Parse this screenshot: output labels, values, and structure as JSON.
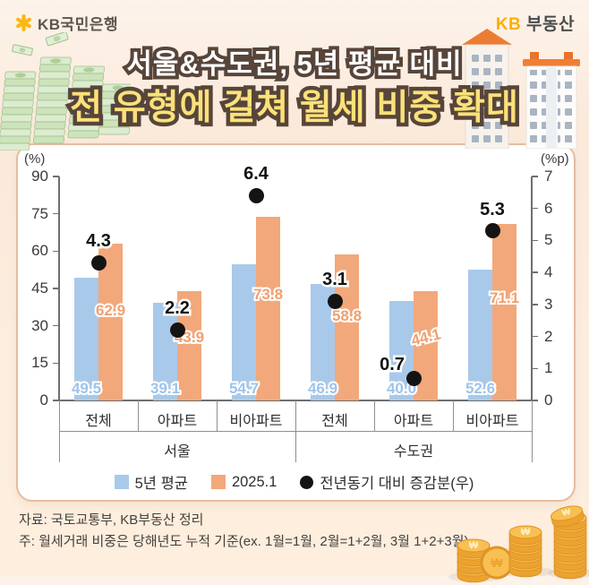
{
  "header": {
    "bank_logo_text": "KB국민은행",
    "brand_kb": "KB",
    "brand_name": "부동산"
  },
  "title": {
    "line1": "서울&수도권, 5년 평균 대비",
    "line2": "전 유형에 걸쳐 월세 비중 확대"
  },
  "colors": {
    "background": "#fcedde",
    "panel_border": "#e7bb9f",
    "title_stroke": "#57453a",
    "title_line1_fill": "#ffffff",
    "title_line2_fill": "#fbe17a",
    "blue_bar": "#a9c9ea",
    "orange_bar": "#f2a87a",
    "blue_label": "#9ec3ea",
    "orange_label": "#f19f6f",
    "dot": "#141414",
    "coin_gold": "#f8c053"
  },
  "chart_data": {
    "type": "bar",
    "title": "서울&수도권, 5년 평균 대비 전 유형에 걸쳐 월세 비중 확대",
    "groups": [
      "서울",
      "수도권"
    ],
    "categories": [
      "전체",
      "아파트",
      "비아파트",
      "전체",
      "아파트",
      "비아파트"
    ],
    "series": [
      {
        "name": "5년 평균",
        "kind": "bar",
        "axis": "left",
        "color": "#a9c9ea",
        "label_color": "#9ec3ea",
        "values": [
          49.5,
          39.1,
          54.7,
          46.9,
          40.0,
          52.6
        ]
      },
      {
        "name": "2025.1",
        "kind": "bar",
        "axis": "left",
        "color": "#f2a87a",
        "label_color": "#f19f6f",
        "values": [
          62.9,
          43.9,
          73.8,
          58.8,
          44.1,
          71.1
        ]
      },
      {
        "name": "전년동기 대비 증감분(우)",
        "kind": "point",
        "axis": "right",
        "color": "#141414",
        "label_color": "#111111",
        "values": [
          4.3,
          2.2,
          6.4,
          3.1,
          0.7,
          5.3
        ]
      }
    ],
    "left_axis": {
      "label": "(%)",
      "min": 0,
      "max": 90,
      "ticks": [
        0,
        15,
        30,
        45,
        60,
        75,
        90
      ]
    },
    "right_axis": {
      "label": "(%p)",
      "min": 0,
      "max": 7,
      "ticks": [
        0,
        1,
        2,
        3,
        4,
        5,
        6,
        7
      ]
    },
    "grid": false,
    "legend_position": "bottom",
    "tilted_label_series": 1,
    "tilted_label_index": 4
  },
  "footer": {
    "source": "자료: 국토교통부, KB부동산 정리",
    "note": "주: 월세거래 비중은 당해년도 누적 기준(ex. 1월=1월, 2월=1+2월, 3월 1+2+3월)"
  }
}
